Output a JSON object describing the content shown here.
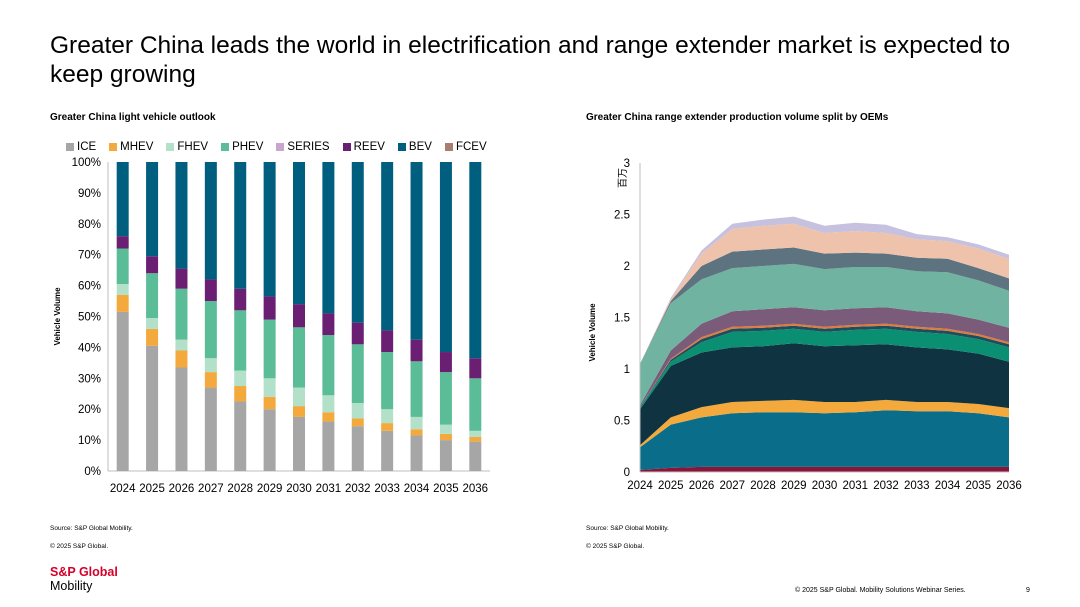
{
  "slide": {
    "title": "Greater China leads the world in electrification and range extender market is expected to keep growing",
    "footer": "© 2025 S&P Global. Mobility Solutions Webinar Series.",
    "page_number": "9",
    "logo_brand": "S&P Global",
    "logo_sub": "Mobility"
  },
  "left_panel": {
    "title": "Greater China light vehicle outlook",
    "source": "Source: S&P Global Mobility.",
    "copyright": "© 2025 S&P Global."
  },
  "right_panel": {
    "title": "Greater China range extender production volume split by OEMs",
    "source": "Source: S&P Global Mobility.",
    "copyright": "© 2025 S&P Global."
  },
  "chart_data": [
    {
      "type": "bar",
      "stacked": true,
      "title": "Greater China light vehicle outlook",
      "ylabel": "Vehicle Volume",
      "xlabel": "",
      "ylim": [
        0,
        100
      ],
      "yticks": [
        "0%",
        "10%",
        "20%",
        "30%",
        "40%",
        "50%",
        "60%",
        "70%",
        "80%",
        "90%",
        "100%"
      ],
      "grid": false,
      "legend_position": "top",
      "categories": [
        "2024",
        "2025",
        "2026",
        "2027",
        "2028",
        "2029",
        "2030",
        "2031",
        "2032",
        "2033",
        "2034",
        "2035",
        "2036"
      ],
      "series": [
        {
          "name": "ICE",
          "color": "#a6a6a6",
          "values": [
            51.5,
            40.5,
            33.5,
            27,
            22.5,
            20,
            17.5,
            16,
            14.5,
            13,
            11.5,
            10,
            9.5
          ]
        },
        {
          "name": "MHEV",
          "color": "#f4a93c",
          "values": [
            5.5,
            5.5,
            5.5,
            5,
            5,
            4,
            3.5,
            3,
            2.5,
            2.5,
            2,
            2,
            1.5
          ]
        },
        {
          "name": "FHEV",
          "color": "#b3e0c9",
          "values": [
            3.5,
            3.5,
            3.5,
            4.5,
            5,
            6,
            6,
            5.5,
            5,
            4.5,
            4,
            3,
            2
          ]
        },
        {
          "name": "PHEV",
          "color": "#5bbd97",
          "values": [
            11.5,
            14.5,
            16.5,
            18.5,
            19.5,
            19,
            19.5,
            19.5,
            19,
            18.5,
            18,
            17,
            17
          ]
        },
        {
          "name": "SERIES",
          "color": "#c9a6cf",
          "values": [
            0,
            0,
            0,
            0,
            0,
            0,
            0,
            0,
            0,
            0,
            0,
            0,
            0
          ]
        },
        {
          "name": "REEV",
          "color": "#6b1f72",
          "values": [
            4,
            5.5,
            6.5,
            7,
            7,
            7.5,
            7.5,
            7,
            7,
            7,
            7,
            6.5,
            6.5
          ]
        },
        {
          "name": "BEV",
          "color": "#005f7f",
          "values": [
            24,
            30.5,
            34.5,
            38,
            41,
            43.5,
            46,
            49,
            52,
            54.5,
            57.5,
            61.5,
            63.5
          ]
        },
        {
          "name": "FCEV",
          "color": "#a57e6e",
          "values": [
            0,
            0,
            0,
            0,
            0,
            0,
            0,
            0,
            0,
            0,
            0,
            0,
            0
          ]
        }
      ]
    },
    {
      "type": "area",
      "stacked": true,
      "title": "Greater China range extender production volume split by OEMs",
      "ylabel": "Vehicle Volume",
      "unit_label": "百万",
      "ylim": [
        0,
        3
      ],
      "yticks": [
        "0",
        "0.5",
        "1",
        "1.5",
        "2",
        "2.5",
        "3"
      ],
      "grid": false,
      "legend_position": "none",
      "x": [
        "2024",
        "2025",
        "2026",
        "2027",
        "2028",
        "2029",
        "2030",
        "2031",
        "2032",
        "2033",
        "2034",
        "2035",
        "2036"
      ],
      "series": [
        {
          "color": "#8b1538",
          "values": [
            0.02,
            0.04,
            0.05,
            0.05,
            0.05,
            0.05,
            0.05,
            0.05,
            0.05,
            0.05,
            0.05,
            0.05,
            0.05
          ]
        },
        {
          "color": "#0a6e8a",
          "values": [
            0.22,
            0.42,
            0.48,
            0.52,
            0.53,
            0.53,
            0.52,
            0.53,
            0.55,
            0.54,
            0.54,
            0.52,
            0.48
          ]
        },
        {
          "color": "#f4a93c",
          "values": [
            0.02,
            0.07,
            0.1,
            0.11,
            0.11,
            0.12,
            0.11,
            0.1,
            0.1,
            0.09,
            0.09,
            0.09,
            0.09
          ]
        },
        {
          "color": "#0f3340",
          "values": [
            0.35,
            0.5,
            0.53,
            0.53,
            0.53,
            0.55,
            0.54,
            0.55,
            0.54,
            0.53,
            0.51,
            0.49,
            0.45
          ]
        },
        {
          "color": "#0b8f72",
          "values": [
            0.02,
            0.04,
            0.1,
            0.15,
            0.15,
            0.14,
            0.14,
            0.15,
            0.15,
            0.15,
            0.15,
            0.14,
            0.14
          ]
        },
        {
          "color": "#1d4e5c",
          "values": [
            0.0,
            0.02,
            0.03,
            0.03,
            0.03,
            0.03,
            0.03,
            0.03,
            0.03,
            0.03,
            0.03,
            0.03,
            0.03
          ]
        },
        {
          "color": "#e07a3d",
          "values": [
            0.0,
            0.01,
            0.02,
            0.02,
            0.02,
            0.02,
            0.02,
            0.02,
            0.02,
            0.02,
            0.02,
            0.02,
            0.02
          ]
        },
        {
          "color": "#7b5b7a",
          "values": [
            0.02,
            0.08,
            0.13,
            0.15,
            0.16,
            0.16,
            0.16,
            0.16,
            0.16,
            0.15,
            0.15,
            0.14,
            0.14
          ]
        },
        {
          "color": "#6fb3a0",
          "values": [
            0.4,
            0.46,
            0.43,
            0.42,
            0.42,
            0.42,
            0.4,
            0.4,
            0.39,
            0.39,
            0.4,
            0.38,
            0.36
          ]
        },
        {
          "color": "#5e7380",
          "values": [
            0.0,
            0.02,
            0.13,
            0.16,
            0.16,
            0.16,
            0.15,
            0.14,
            0.13,
            0.13,
            0.13,
            0.12,
            0.12
          ]
        },
        {
          "color": "#efc2ab",
          "values": [
            0.0,
            0.02,
            0.12,
            0.22,
            0.23,
            0.23,
            0.2,
            0.21,
            0.2,
            0.18,
            0.17,
            0.19,
            0.19
          ]
        },
        {
          "color": "#c5c1de",
          "values": [
            0.0,
            0.01,
            0.03,
            0.05,
            0.06,
            0.07,
            0.07,
            0.08,
            0.08,
            0.05,
            0.04,
            0.04,
            0.04
          ]
        }
      ]
    }
  ]
}
